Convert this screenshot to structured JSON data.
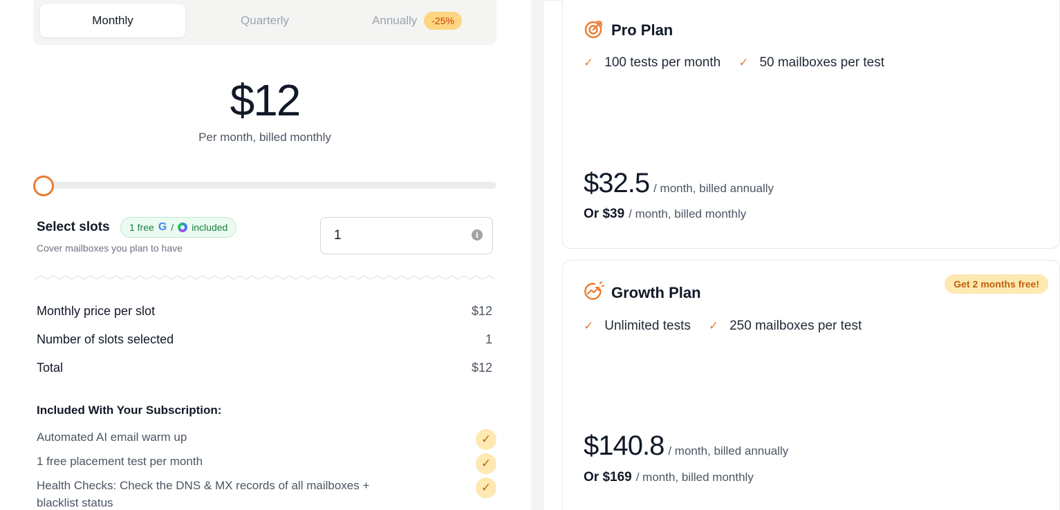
{
  "billing_tabs": {
    "monthly": "Monthly",
    "quarterly": "Quarterly",
    "annually": "Annually",
    "annual_discount": "-25%"
  },
  "price": {
    "amount": "$12",
    "caption": "Per month, billed monthly"
  },
  "slider": {
    "value": 1,
    "min": 1
  },
  "slots": {
    "title": "Select slots",
    "badge_prefix": "1 free",
    "badge_separator": "/",
    "badge_suffix": "included",
    "subtitle": "Cover mailboxes you plan to have",
    "input_value": "1"
  },
  "summary": [
    {
      "label": "Monthly price per slot",
      "value": "$12"
    },
    {
      "label": "Number of slots selected",
      "value": "1"
    },
    {
      "label": "Total",
      "value": "$12"
    }
  ],
  "included": {
    "title": "Included With Your Subscription:",
    "features": [
      "Automated AI email warm up",
      "1 free placement test per month",
      "Health Checks: Check the DNS & MX records of all mailboxes + blacklist status"
    ]
  },
  "plans": [
    {
      "name": "Pro Plan",
      "features": [
        "100 tests per month",
        "50 mailboxes per test"
      ],
      "price": "$32.5",
      "price_period": "/ month, billed annually",
      "alt_price": "Or $39",
      "alt_period": "/ month, billed monthly",
      "icon": "target-icon"
    },
    {
      "name": "Growth Plan",
      "promo": "Get 2 months free!",
      "features": [
        "Unlimited tests",
        "250 mailboxes per test"
      ],
      "price": "$140.8",
      "price_period": "/ month, billed annually",
      "alt_price": "Or $169",
      "alt_period": "/ month, billed monthly",
      "icon": "growth-arrow-icon"
    }
  ],
  "colors": {
    "accent": "#ea7b2f",
    "badge_bg": "#fde9b1",
    "free_badge_bg": "#ecfbf1",
    "free_badge_text": "#15803d"
  }
}
